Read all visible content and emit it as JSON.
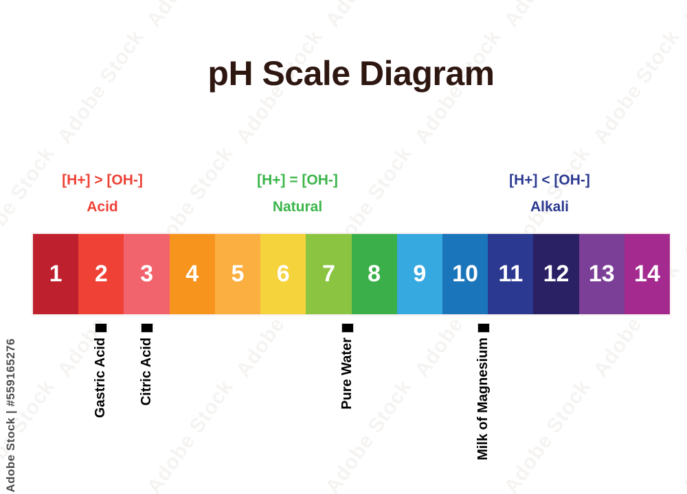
{
  "title": "pH Scale Diagram",
  "regions": [
    {
      "formula": "[H+] > [OH-]",
      "label": "Acid",
      "color": "#EE4136"
    },
    {
      "formula": "[H+] = [OH-]",
      "label": "Natural",
      "color": "#3BB54A"
    },
    {
      "formula": "[H+] < [OH-]",
      "label": "Alkali",
      "color": "#2B3990"
    }
  ],
  "scale": {
    "segments": [
      {
        "ph": "1",
        "color": "#BE202E"
      },
      {
        "ph": "2",
        "color": "#EF4136"
      },
      {
        "ph": "3",
        "color": "#F2646D"
      },
      {
        "ph": "4",
        "color": "#F7941E"
      },
      {
        "ph": "5",
        "color": "#FAAF40"
      },
      {
        "ph": "6",
        "color": "#F5D33C"
      },
      {
        "ph": "7",
        "color": "#8AC440"
      },
      {
        "ph": "8",
        "color": "#3BB04A"
      },
      {
        "ph": "9",
        "color": "#36A9E1"
      },
      {
        "ph": "10",
        "color": "#1B75BB"
      },
      {
        "ph": "11",
        "color": "#2B3990"
      },
      {
        "ph": "12",
        "color": "#2A2164"
      },
      {
        "ph": "13",
        "color": "#7B3F98"
      },
      {
        "ph": "14",
        "color": "#A52A90"
      }
    ]
  },
  "markers": [
    {
      "label": "Gastric Acid",
      "ph_position": 2.0
    },
    {
      "label": "Citric Acid",
      "ph_position": 3.0
    },
    {
      "label": "Pure Water",
      "ph_position": 7.42
    },
    {
      "label": "Milk of Magnesium",
      "ph_position": 10.4
    }
  ],
  "watermark": {
    "tile_text": "Adobe Stock",
    "side_text": "Adobe Stock | #559165276"
  }
}
